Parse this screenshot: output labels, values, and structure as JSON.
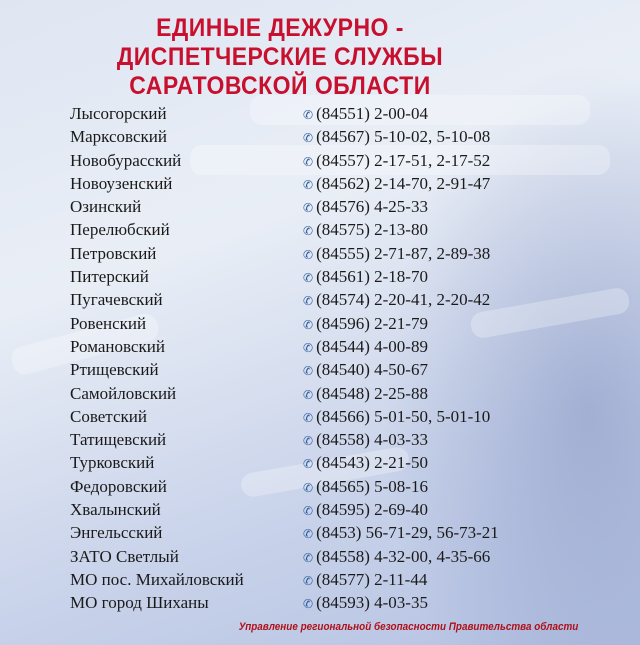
{
  "title": [
    "ЕДИНЫЕ ДЕЖУРНО -",
    "ДИСПЕТЧЕРСКИЕ СЛУЖБЫ",
    "САРАТОВСКОЙ ОБЛАСТИ"
  ],
  "phone_icon": "phone-icon",
  "accent_color": "#c8102e",
  "services": [
    {
      "name": "Лысогорский",
      "phone": "(84551) 2-00-04"
    },
    {
      "name": "Марксовский",
      "phone": "(84567) 5-10-02, 5-10-08"
    },
    {
      "name": "Новобурасский",
      "phone": "(84557) 2-17-51, 2-17-52"
    },
    {
      "name": "Новоузенский",
      "phone": "(84562) 2-14-70, 2-91-47"
    },
    {
      "name": "Озинский",
      "phone": "(84576) 4-25-33"
    },
    {
      "name": "Перелюбский",
      "phone": "(84575) 2-13-80"
    },
    {
      "name": "Петровский",
      "phone": "(84555) 2-71-87, 2-89-38"
    },
    {
      "name": "Питерский",
      "phone": "(84561) 2-18-70"
    },
    {
      "name": "Пугачевский",
      "phone": "(84574) 2-20-41, 2-20-42"
    },
    {
      "name": "Ровенский",
      "phone": "(84596) 2-21-79"
    },
    {
      "name": "Романовский",
      "phone": "(84544) 4-00-89"
    },
    {
      "name": "Ртищевский",
      "phone": "(84540) 4-50-67"
    },
    {
      "name": "Самойловский",
      "phone": "(84548) 2-25-88"
    },
    {
      "name": "Советский",
      "phone": "(84566) 5-01-50, 5-01-10"
    },
    {
      "name": "Татищевский",
      "phone": "(84558) 4-03-33"
    },
    {
      "name": "Турковский",
      "phone": "(84543) 2-21-50"
    },
    {
      "name": "Федоровский",
      "phone": "(84565) 5-08-16"
    },
    {
      "name": "Хвалынский",
      "phone": "(84595) 2-69-40"
    },
    {
      "name": "Энгельсский",
      "phone": "(8453) 56-71-29, 56-73-21"
    },
    {
      "name": "ЗАТО Светлый",
      "phone": "(84558) 4-32-00, 4-35-66"
    },
    {
      "name": "МО пос. Михайловский",
      "phone": "(84577) 2-11-44"
    },
    {
      "name": "МО город Шиханы",
      "phone": "(84593) 4-03-35"
    }
  ],
  "footer": "Управление региональной безопасности Правительства области"
}
